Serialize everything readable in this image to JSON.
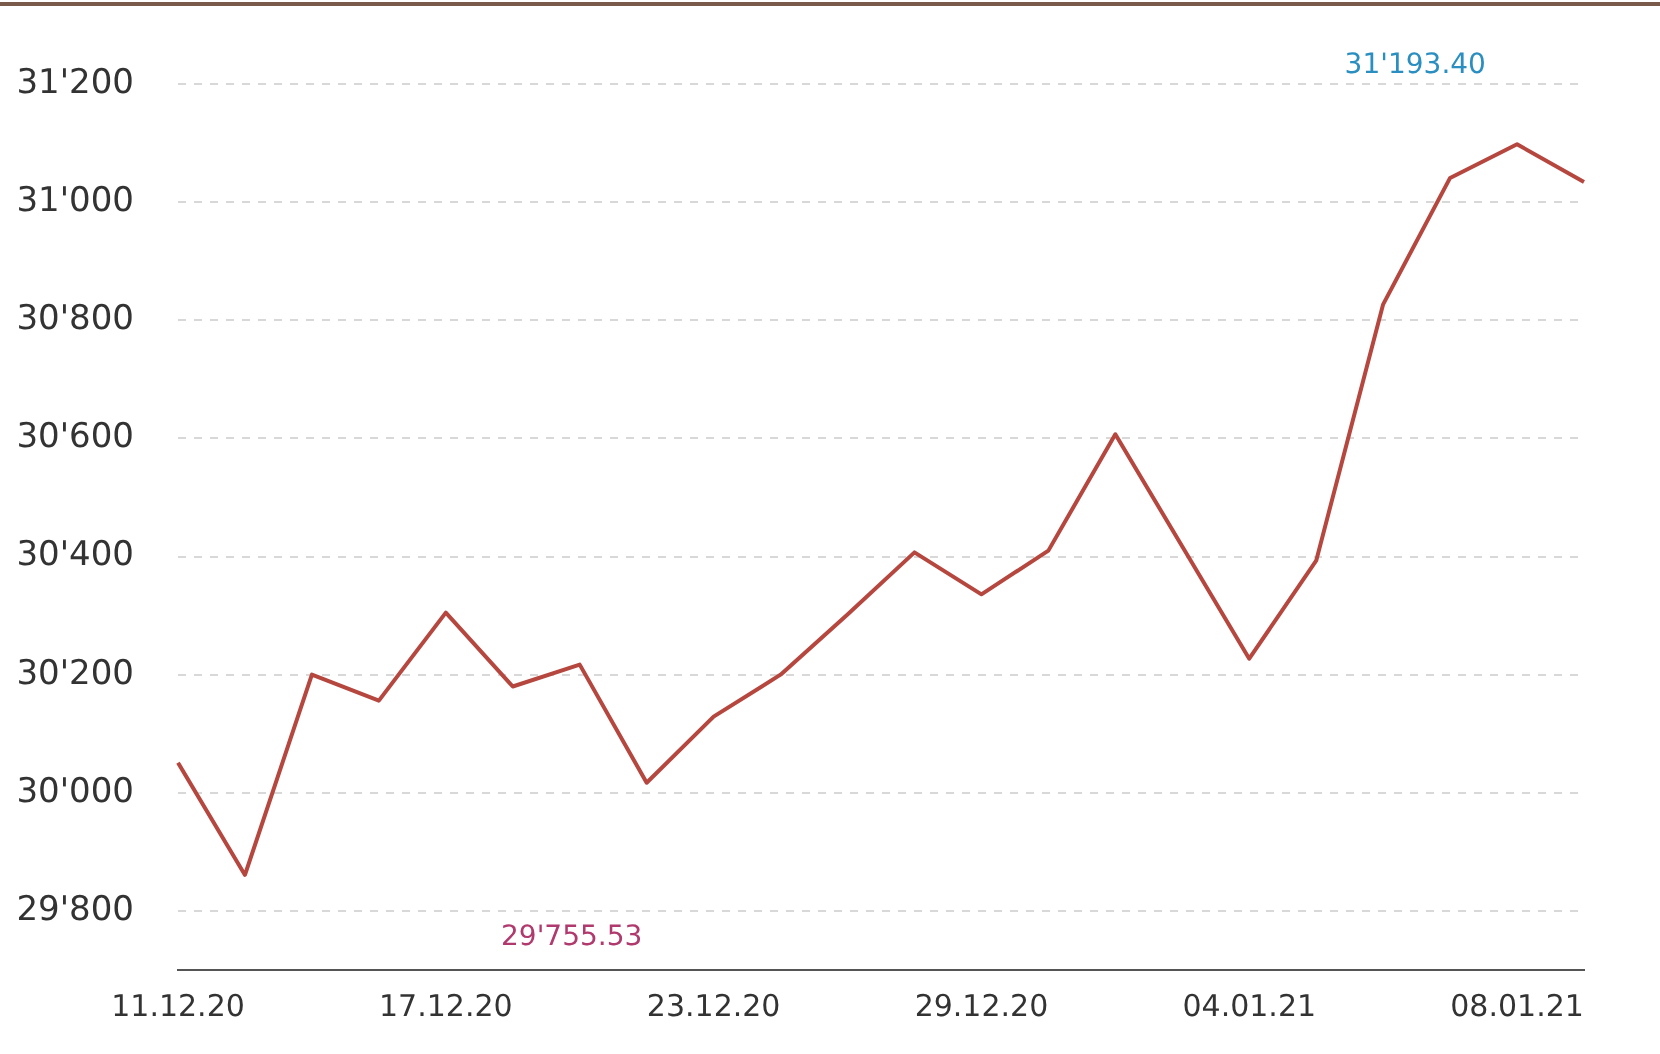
{
  "chart_data": {
    "type": "line",
    "categories": [
      "11.12.20",
      null,
      null,
      null,
      "17.12.20",
      null,
      null,
      null,
      "23.12.20",
      null,
      null,
      null,
      "29.12.20",
      null,
      null,
      null,
      "04.01.21",
      null,
      null,
      null,
      "08.01.21",
      null
    ],
    "series": [
      {
        "color": "#b5473f",
        "values": [
          30051,
          29861,
          30200,
          30156,
          30305,
          30180,
          30217,
          30017,
          30129,
          30200,
          30302,
          30407,
          30336,
          30410,
          30607,
          30417,
          30227,
          30393,
          30827,
          31041,
          31098,
          31034
        ]
      }
    ],
    "ylim": [
      29700,
      31200
    ],
    "yticks": [
      {
        "value": 29800,
        "label": "29'800"
      },
      {
        "value": 30000,
        "label": "30'000"
      },
      {
        "value": 30200,
        "label": "30'200"
      },
      {
        "value": 30400,
        "label": "30'400"
      },
      {
        "value": 30600,
        "label": "30'600"
      },
      {
        "value": 30800,
        "label": "30'800"
      },
      {
        "value": 31000,
        "label": "31'000"
      },
      {
        "value": 31200,
        "label": "31'200"
      }
    ],
    "grid": "y",
    "legend": false,
    "marker": "none",
    "line_style": "solid",
    "annotations": [
      "29'755.53",
      "31'193.40"
    ]
  }
}
